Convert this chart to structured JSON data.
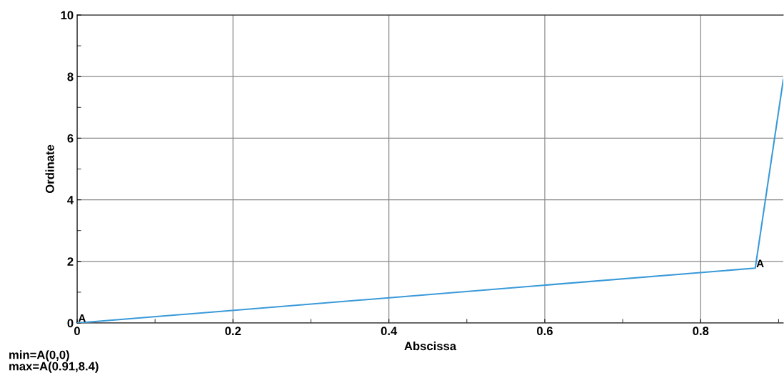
{
  "chart_data": {
    "type": "line",
    "xlabel": "Abscissa",
    "ylabel": "Ordinate",
    "x": [
      0,
      0.87,
      0.906
    ],
    "series": [
      {
        "color": "#3a9ad9",
        "values": [
          0,
          1.78,
          7.9
        ]
      }
    ],
    "xlim": [
      0,
      0.906
    ],
    "xticks": [
      0,
      0.2,
      0.4,
      0.6,
      0.8
    ],
    "ylim": [
      0,
      10
    ],
    "yticks": [
      0,
      2,
      4,
      6,
      8,
      10
    ],
    "grid": true,
    "marker": "none",
    "line_style": "solid",
    "annotations": [
      {
        "text": "A",
        "x": 0,
        "y": 0
      },
      {
        "text": "A",
        "x": 0.87,
        "y": 1.78
      },
      "min=A(0,0)",
      "max=A(0.91,8.4)"
    ]
  }
}
